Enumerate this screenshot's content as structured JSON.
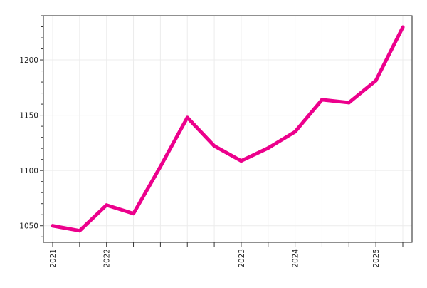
{
  "chart_data": {
    "type": "line",
    "title": "",
    "xlabel": "",
    "ylabel": "",
    "categories": [
      "2021",
      "",
      "2022",
      "",
      "",
      "",
      "",
      "2023",
      "",
      "2024",
      "",
      "",
      "2025",
      ""
    ],
    "series": [
      {
        "values": [
          1050,
          1045.5,
          1068.7,
          1061,
          1103.5,
          1147.9,
          1122.2,
          1108.7,
          1120.3,
          1135,
          1164,
          1161.4,
          1181.3,
          1229.6
        ],
        "color": "#ec008c"
      }
    ],
    "ylim": [
      1035,
      1240
    ],
    "yticks": [
      1050,
      1100,
      1150,
      1200
    ],
    "grid": true,
    "legend": "none"
  }
}
